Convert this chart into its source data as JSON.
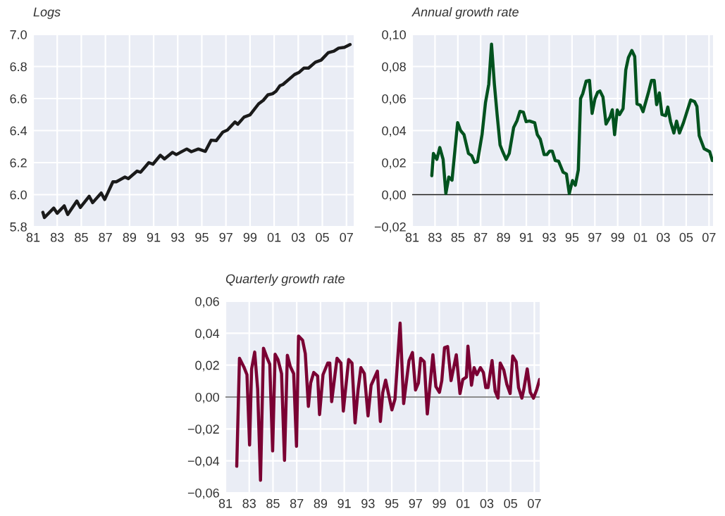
{
  "chart_data": [
    {
      "type": "line",
      "title": "Logs",
      "grid": true,
      "xlim": [
        1981,
        2007.6
      ],
      "ylim": [
        5.8,
        7.0
      ],
      "xticks": [
        {
          "value": 1981,
          "label": "81"
        },
        {
          "value": 1983,
          "label": "83"
        },
        {
          "value": 1985,
          "label": "85"
        },
        {
          "value": 1987,
          "label": "87"
        },
        {
          "value": 1989,
          "label": "89"
        },
        {
          "value": 1991,
          "label": "91"
        },
        {
          "value": 1993,
          "label": "93"
        },
        {
          "value": 1995,
          "label": "95"
        },
        {
          "value": 1997,
          "label": "97"
        },
        {
          "value": 1999,
          "label": "99"
        },
        {
          "value": 2001,
          "label": "01"
        },
        {
          "value": 2003,
          "label": "03"
        },
        {
          "value": 2005,
          "label": "05"
        },
        {
          "value": 2007,
          "label": "07"
        }
      ],
      "yticks": [
        {
          "value": 5.8,
          "label": "5.8"
        },
        {
          "value": 6.0,
          "label": "6.0"
        },
        {
          "value": 6.2,
          "label": "6.2"
        },
        {
          "value": 6.4,
          "label": "6.4"
        },
        {
          "value": 6.6,
          "label": "6.6"
        },
        {
          "value": 6.8,
          "label": "6.8"
        },
        {
          "value": 7.0,
          "label": "7.0"
        }
      ],
      "series": [
        {
          "color": "#1a1a1a",
          "x": [
            1981.81,
            1981.94,
            1982.71,
            1983.0,
            1983.58,
            1983.87,
            1984.63,
            1984.92,
            1985.65,
            1985.94,
            1986.65,
            1986.94,
            1987.62,
            1987.9,
            1988.62,
            1988.9,
            1989.63,
            1989.92,
            1990.6,
            1990.94,
            1991.56,
            1991.9,
            1992.56,
            1992.88,
            1993.75,
            1994.13,
            1994.71,
            1995.29,
            1995.77,
            1996.19,
            1996.73,
            1997.12,
            1997.75,
            1997.98,
            1998.5,
            1999.0,
            1999.71,
            2000.1,
            2000.48,
            2000.87,
            2001.15,
            2001.48,
            2001.73,
            2002.69,
            2003.08,
            2003.46,
            2003.85,
            2004.42,
            2004.9,
            2005.48,
            2005.96,
            2006.35,
            2006.83,
            2007.3
          ],
          "values": [
            5.89,
            5.857,
            5.916,
            5.884,
            5.93,
            5.876,
            5.96,
            5.92,
            5.99,
            5.95,
            6.01,
            5.97,
            6.08,
            6.08,
            6.11,
            6.1,
            6.147,
            6.14,
            6.2,
            6.19,
            6.246,
            6.223,
            6.264,
            6.25,
            6.285,
            6.268,
            6.285,
            6.27,
            6.34,
            6.337,
            6.39,
            6.403,
            6.454,
            6.44,
            6.484,
            6.498,
            6.567,
            6.589,
            6.623,
            6.63,
            6.645,
            6.68,
            6.688,
            6.75,
            6.764,
            6.79,
            6.79,
            6.827,
            6.84,
            6.886,
            6.896,
            6.915,
            6.92,
            6.937
          ]
        }
      ]
    },
    {
      "type": "line",
      "title": "Annual growth rate",
      "grid": true,
      "xlim": [
        1981,
        2007.35
      ],
      "ylim": [
        -0.02,
        0.1
      ],
      "xticks": [
        {
          "value": 1981,
          "label": "81"
        },
        {
          "value": 1983,
          "label": "83"
        },
        {
          "value": 1985,
          "label": "85"
        },
        {
          "value": 1987,
          "label": "87"
        },
        {
          "value": 1989,
          "label": "89"
        },
        {
          "value": 1991,
          "label": "91"
        },
        {
          "value": 1993,
          "label": "93"
        },
        {
          "value": 1995,
          "label": "95"
        },
        {
          "value": 1997,
          "label": "97"
        },
        {
          "value": 1999,
          "label": "99"
        },
        {
          "value": 2001,
          "label": "01"
        },
        {
          "value": 2003,
          "label": "03"
        },
        {
          "value": 2005,
          "label": "05"
        },
        {
          "value": 2007,
          "label": "07"
        }
      ],
      "yticks": [
        {
          "value": -0.02,
          "label": "−0,02"
        },
        {
          "value": 0,
          "label": "0,00"
        },
        {
          "value": 0.02,
          "label": "0,02"
        },
        {
          "value": 0.04,
          "label": "0,04"
        },
        {
          "value": 0.06,
          "label": "0,06"
        },
        {
          "value": 0.08,
          "label": "0,08"
        },
        {
          "value": 0.1,
          "label": "0,10"
        }
      ],
      "ref_lines": [
        {
          "axis": "y",
          "value": 0,
          "color": "#1a1a1a"
        }
      ],
      "series": [
        {
          "color": "#00521e",
          "x": [
            1982.72,
            1982.86,
            1983.16,
            1983.42,
            1983.71,
            1983.95,
            1984.21,
            1984.49,
            1984.98,
            1985.24,
            1985.54,
            1985.93,
            1986.22,
            1986.46,
            1986.72,
            1987.12,
            1987.42,
            1987.71,
            1987.95,
            1988.2,
            1988.44,
            1988.7,
            1988.95,
            1989.23,
            1989.5,
            1989.89,
            1990.19,
            1990.44,
            1990.74,
            1990.98,
            1991.27,
            1991.73,
            1991.96,
            1992.22,
            1992.56,
            1992.8,
            1993.04,
            1993.27,
            1993.53,
            1993.82,
            1994.22,
            1994.51,
            1994.76,
            1995.04,
            1995.29,
            1995.55,
            1995.75,
            1995.94,
            1996.24,
            1996.53,
            1996.76,
            1997.0,
            1997.25,
            1997.45,
            1997.71,
            1997.98,
            1998.33,
            1998.53,
            1998.73,
            1998.96,
            1999.16,
            1999.47,
            1999.71,
            1999.94,
            2000.24,
            2000.49,
            2000.69,
            2000.98,
            2001.22,
            2001.67,
            2001.96,
            2002.2,
            2002.41,
            2002.65,
            2002.88,
            2003.2,
            2003.39,
            2003.63,
            2003.92,
            2004.16,
            2004.41,
            2004.76,
            2005.39,
            2005.73,
            2005.94,
            2006.14,
            2006.57,
            2007.06,
            2007.29
          ],
          "values": [
            0.0118,
            0.0257,
            0.022,
            0.0294,
            0.022,
            0.0007,
            0.011,
            0.009,
            0.045,
            0.04,
            0.0375,
            0.0257,
            0.0243,
            0.0201,
            0.0206,
            0.0375,
            0.0574,
            0.069,
            0.094,
            0.069,
            0.05,
            0.031,
            0.0265,
            0.022,
            0.0257,
            0.042,
            0.0463,
            0.052,
            0.0515,
            0.0456,
            0.046,
            0.0449,
            0.0375,
            0.0346,
            0.025,
            0.025,
            0.0272,
            0.0272,
            0.0213,
            0.0209,
            0.014,
            0.0129,
            0.0007,
            0.0088,
            0.0059,
            0.0154,
            0.06,
            0.063,
            0.0709,
            0.0713,
            0.0507,
            0.0596,
            0.064,
            0.0647,
            0.061,
            0.0441,
            0.0485,
            0.053,
            0.0375,
            0.0529,
            0.05,
            0.0537,
            0.0779,
            0.0856,
            0.09,
            0.0863,
            0.0566,
            0.0559,
            0.0518,
            0.0632,
            0.0713,
            0.0713,
            0.0562,
            0.0635,
            0.05,
            0.0493,
            0.0547,
            0.0456,
            0.0385,
            0.0459,
            0.0385,
            0.0449,
            0.0591,
            0.0581,
            0.0551,
            0.0368,
            0.0287,
            0.0268,
            0.0213
          ]
        }
      ]
    },
    {
      "type": "line",
      "title": "Quarterly growth rate",
      "grid": true,
      "xlim": [
        1981,
        2007.45
      ],
      "ylim": [
        -0.06,
        0.06
      ],
      "xticks": [
        {
          "value": 1981,
          "label": "81"
        },
        {
          "value": 1983,
          "label": "83"
        },
        {
          "value": 1985,
          "label": "85"
        },
        {
          "value": 1987,
          "label": "87"
        },
        {
          "value": 1989,
          "label": "89"
        },
        {
          "value": 1991,
          "label": "91"
        },
        {
          "value": 1993,
          "label": "93"
        },
        {
          "value": 1995,
          "label": "95"
        },
        {
          "value": 1997,
          "label": "97"
        },
        {
          "value": 1999,
          "label": "99"
        },
        {
          "value": 2001,
          "label": "01"
        },
        {
          "value": 2003,
          "label": "03"
        },
        {
          "value": 2005,
          "label": "05"
        },
        {
          "value": 2007,
          "label": "07"
        }
      ],
      "yticks": [
        {
          "value": -0.06,
          "label": "−0,06"
        },
        {
          "value": -0.04,
          "label": "−0,04"
        },
        {
          "value": -0.02,
          "label": "−0,02"
        },
        {
          "value": 0,
          "label": "0,00"
        },
        {
          "value": 0.02,
          "label": "0,02"
        },
        {
          "value": 0.04,
          "label": "0,04"
        },
        {
          "value": 0.06,
          "label": "0,06"
        }
      ],
      "ref_lines": [
        {
          "axis": "y",
          "value": 0,
          "color": "#666666"
        }
      ],
      "series": [
        {
          "color": "#7a0033",
          "x": [
            1981.95,
            1982.18,
            1982.54,
            1982.81,
            1983.03,
            1983.2,
            1983.46,
            1983.71,
            1983.95,
            1984.2,
            1984.48,
            1984.73,
            1984.97,
            1985.18,
            1985.42,
            1985.72,
            1985.97,
            1986.21,
            1986.46,
            1986.74,
            1986.98,
            1987.15,
            1987.49,
            1987.72,
            1987.98,
            1988.17,
            1988.43,
            1988.76,
            1988.92,
            1989.21,
            1989.61,
            1989.78,
            1989.94,
            1990.39,
            1990.72,
            1990.92,
            1991.37,
            1991.65,
            1991.91,
            1992.16,
            1992.4,
            1992.69,
            1993.0,
            1993.26,
            1993.79,
            1994.04,
            1994.24,
            1994.48,
            1995.01,
            1995.27,
            1995.7,
            1996.0,
            1996.45,
            1996.74,
            1997.0,
            1997.24,
            1997.43,
            1997.73,
            1997.99,
            1998.46,
            1998.71,
            1999.01,
            1999.21,
            1999.44,
            1999.7,
            1999.99,
            2000.43,
            2000.74,
            2000.98,
            2001.28,
            2001.41,
            2001.71,
            2001.93,
            2002.16,
            2002.46,
            2002.71,
            2002.91,
            2003.1,
            2003.44,
            2003.7,
            2003.94,
            2004.13,
            2004.43,
            2004.68,
            2004.96,
            2005.18,
            2005.47,
            2005.67,
            2005.95,
            2006.1,
            2006.4,
            2006.66,
            2006.93,
            2007.19,
            2007.44
          ],
          "values": [
            -0.0434,
            0.0243,
            0.019,
            0.014,
            -0.0301,
            0.0176,
            0.0282,
            0.005,
            -0.0522,
            0.0306,
            0.025,
            0.0206,
            -0.0338,
            0.0268,
            0.0235,
            0.0147,
            -0.0397,
            0.0262,
            0.0191,
            0.0147,
            -0.0309,
            0.0382,
            0.0356,
            0.0272,
            -0.0059,
            0.0088,
            0.0154,
            0.0132,
            -0.011,
            0.014,
            0.0213,
            0.0213,
            -0.0029,
            0.0243,
            0.0213,
            -0.0088,
            0.0235,
            0.0213,
            -0.0162,
            0.0044,
            0.0184,
            0.0147,
            -0.0118,
            0.0074,
            0.0162,
            -0.0153,
            0.0029,
            0.0106,
            -0.0081,
            -0.0013,
            0.0463,
            -0.0041,
            0.0228,
            0.0279,
            0.0044,
            0.0088,
            0.0243,
            0.0221,
            -0.0106,
            0.0265,
            0.0066,
            0.0029,
            0.0103,
            0.0309,
            0.0316,
            0.0103,
            0.0265,
            0.0022,
            0.011,
            0.0125,
            0.0319,
            0.0074,
            0.0184,
            0.014,
            0.0184,
            0.0154,
            0.0059,
            0.0059,
            0.0228,
            0.0037,
            -0.0006,
            0.0213,
            0.0169,
            0.0081,
            0.0022,
            0.0257,
            0.0221,
            0.0059,
            -0.0007,
            0.0044,
            0.0176,
            0.0029,
            -0.0007,
            0.0044,
            0.011
          ]
        }
      ]
    }
  ]
}
